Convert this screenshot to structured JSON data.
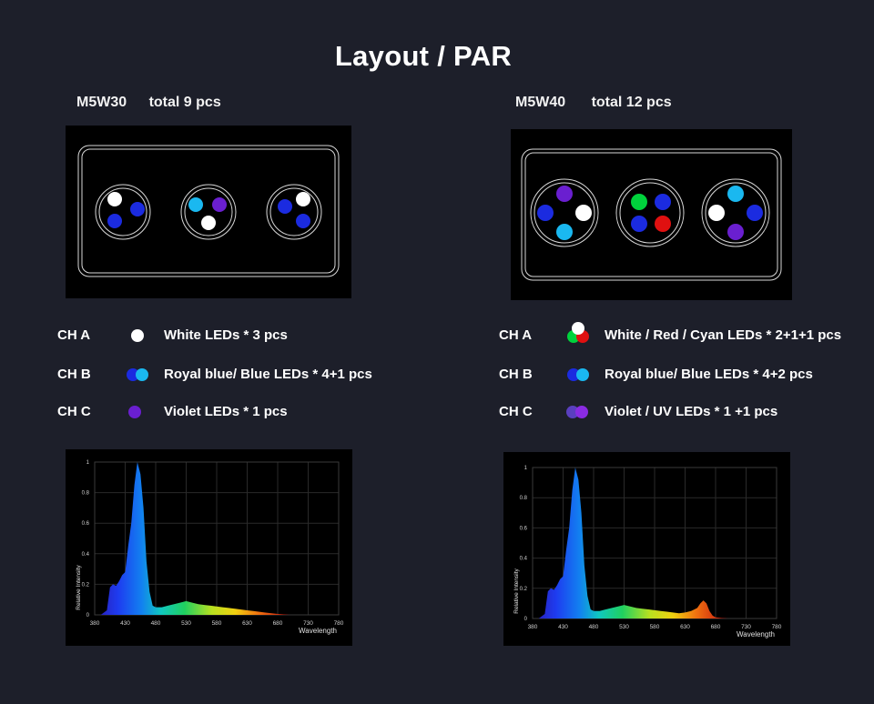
{
  "title": "Layout / PAR",
  "colors": {
    "background": "#1d1f2a",
    "white_led": "#ffffff",
    "royal_blue_led": "#1b2be0",
    "blue_led": "#1ab8f0",
    "violet_led": "#6a1fd0",
    "green_led": "#00d23c",
    "red_led": "#e01010",
    "uv_led": "#8a2be2"
  },
  "left": {
    "model": "M5W30",
    "total": "total 9 pcs",
    "channels": [
      {
        "ch": "CH A",
        "text": "White LEDs *  3 pcs",
        "icon": "white-led-icon"
      },
      {
        "ch": "CH B",
        "text": "Royal blue/ Blue LEDs *  4+1  pcs",
        "icon": "royal-blue-led-icon"
      },
      {
        "ch": "CH C",
        "text": "Violet LEDs *  1 pcs",
        "icon": "violet-led-icon"
      }
    ],
    "clusters": [
      [
        "white",
        "royal_blue",
        "royal_blue"
      ],
      [
        "cyan",
        "violet",
        "white"
      ],
      [
        "white",
        "royal_blue",
        "royal_blue"
      ]
    ]
  },
  "right": {
    "model": "M5W40",
    "total": "total 12 pcs",
    "channels": [
      {
        "ch": "CH A",
        "text": "White / Red / Cyan LEDs *  2+1+1 pcs",
        "icon": "rgb-led-icon"
      },
      {
        "ch": "CH B",
        "text": "Royal blue/ Blue LEDs *  4+2  pcs",
        "icon": "royal-blue-led-icon"
      },
      {
        "ch": "CH C",
        "text": "Violet / UV LEDs *  1 +1  pcs",
        "icon": "violet-uv-led-icon"
      }
    ],
    "clusters": [
      [
        "violet",
        "royal_blue",
        "white",
        "cyan"
      ],
      [
        "green",
        "royal_blue",
        "royal_blue",
        "red"
      ],
      [
        "cyan",
        "white",
        "royal_blue",
        "violet"
      ]
    ]
  },
  "chart_data": [
    {
      "type": "area",
      "xlabel": "Wavelength",
      "ylabel": "Relative Intensity",
      "xlim": [
        380,
        780
      ],
      "ylim": [
        0,
        1
      ],
      "x_ticks": [
        380,
        430,
        480,
        530,
        580,
        630,
        680,
        730,
        780
      ],
      "y_ticks": [
        "0",
        "0.2",
        "0.4",
        "0.6",
        "0.8",
        "1"
      ],
      "x": [
        380,
        390,
        400,
        405,
        410,
        415,
        420,
        425,
        430,
        435,
        440,
        445,
        450,
        455,
        460,
        465,
        470,
        475,
        480,
        490,
        500,
        510,
        520,
        530,
        540,
        550,
        560,
        570,
        580,
        590,
        600,
        610,
        620,
        630,
        640,
        650,
        660,
        670,
        680,
        690,
        700
      ],
      "y": [
        0,
        0,
        0.03,
        0.18,
        0.2,
        0.19,
        0.22,
        0.26,
        0.28,
        0.45,
        0.6,
        0.85,
        1.0,
        0.92,
        0.7,
        0.35,
        0.15,
        0.06,
        0.05,
        0.05,
        0.06,
        0.07,
        0.08,
        0.09,
        0.08,
        0.07,
        0.065,
        0.06,
        0.055,
        0.05,
        0.045,
        0.04,
        0.035,
        0.03,
        0.025,
        0.02,
        0.015,
        0.01,
        0.006,
        0.003,
        0
      ]
    },
    {
      "type": "area",
      "xlabel": "Wavelength",
      "ylabel": "Relative Intensity",
      "xlim": [
        380,
        780
      ],
      "ylim": [
        0,
        1
      ],
      "x_ticks": [
        380,
        430,
        480,
        530,
        580,
        630,
        680,
        730,
        780
      ],
      "y_ticks": [
        "0",
        "0.2",
        "0.4",
        "0.6",
        "0.8",
        "1"
      ],
      "x": [
        380,
        390,
        400,
        405,
        410,
        415,
        420,
        425,
        430,
        435,
        440,
        445,
        450,
        455,
        460,
        465,
        470,
        475,
        480,
        490,
        500,
        510,
        520,
        530,
        540,
        550,
        560,
        570,
        580,
        590,
        600,
        610,
        620,
        630,
        640,
        650,
        655,
        660,
        665,
        670,
        675,
        680,
        690,
        700
      ],
      "y": [
        0,
        0,
        0.03,
        0.18,
        0.2,
        0.19,
        0.22,
        0.26,
        0.28,
        0.45,
        0.6,
        0.85,
        1.0,
        0.92,
        0.7,
        0.35,
        0.15,
        0.06,
        0.05,
        0.05,
        0.06,
        0.07,
        0.08,
        0.09,
        0.08,
        0.07,
        0.065,
        0.06,
        0.055,
        0.05,
        0.045,
        0.04,
        0.035,
        0.04,
        0.05,
        0.07,
        0.1,
        0.12,
        0.1,
        0.05,
        0.02,
        0.008,
        0.003,
        0
      ]
    }
  ]
}
